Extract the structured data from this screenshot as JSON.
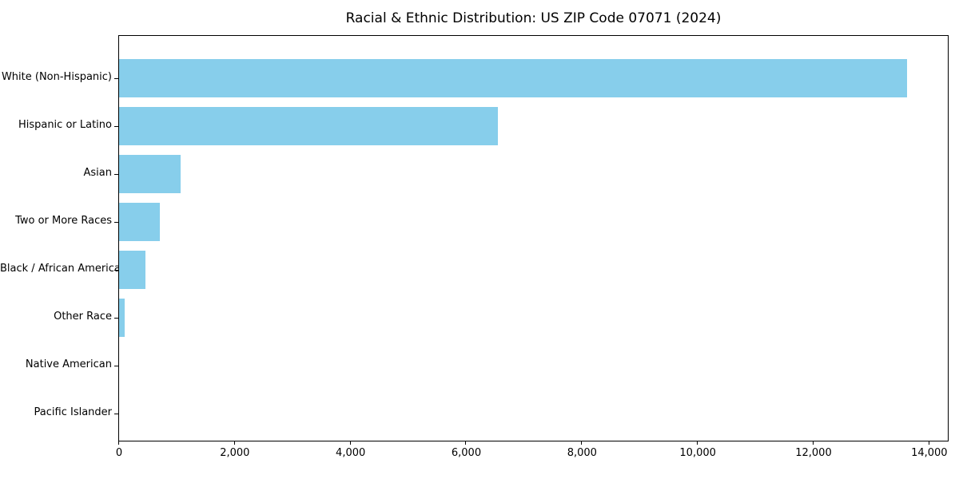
{
  "chart_data": {
    "type": "bar",
    "orientation": "horizontal",
    "title": "Racial & Ethnic Distribution: US ZIP Code 07071 (2024)",
    "categories": [
      "White (Non-Hispanic)",
      "Hispanic or Latino",
      "Asian",
      "Two or More Races",
      "Black / African American",
      "Other Race",
      "Native American",
      "Pacific Islander"
    ],
    "values": [
      13620,
      6540,
      1070,
      700,
      450,
      100,
      0,
      0
    ],
    "bar_color": "#87CEEB",
    "xlabel": "",
    "ylabel": "",
    "xlim": [
      0,
      14320
    ],
    "xticks": [
      0,
      2000,
      4000,
      6000,
      8000,
      10000,
      12000,
      14000
    ],
    "xtick_labels": [
      "0",
      "2,000",
      "4,000",
      "6,000",
      "8,000",
      "10,000",
      "12,000",
      "14,000"
    ],
    "grid": false,
    "legend": null,
    "background_color": "#ffffff",
    "axis_color": "#000000"
  }
}
